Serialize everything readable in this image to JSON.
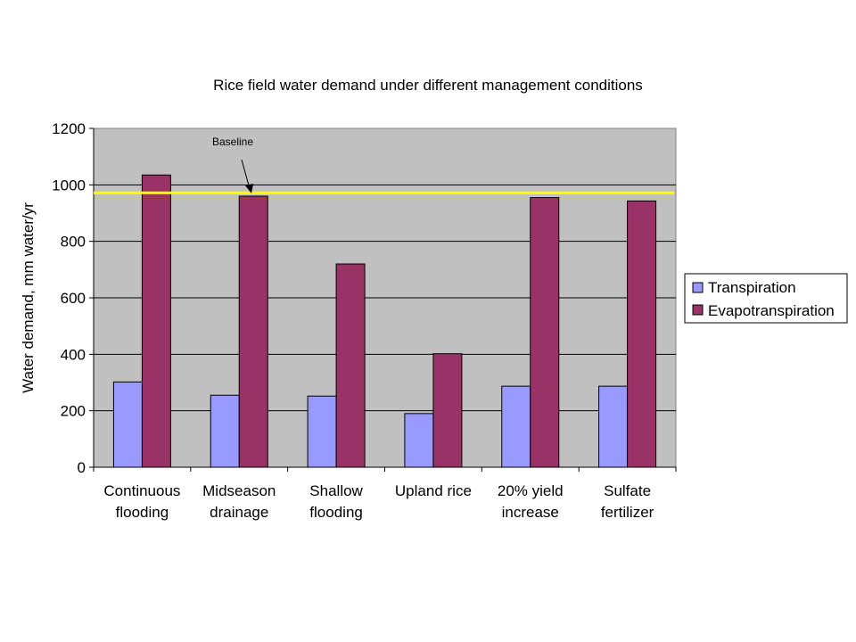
{
  "chart_data": {
    "type": "bar",
    "title": "Rice field water demand under different management conditions",
    "ylabel": "Water demand, mm water/yr",
    "xlabel": "",
    "ylim": [
      0,
      1200
    ],
    "yticks": [
      0,
      200,
      400,
      600,
      800,
      1000,
      1200
    ],
    "grid": true,
    "categories": [
      [
        "Continuous",
        "flooding"
      ],
      [
        "Midseason",
        "drainage"
      ],
      [
        "Shallow",
        "flooding"
      ],
      [
        "Upland rice"
      ],
      [
        "20% yield",
        "increase"
      ],
      [
        "Sulfate",
        "fertilizer"
      ]
    ],
    "series": [
      {
        "name": "Transpiration",
        "color": "#9999ff",
        "values": [
          302,
          255,
          252,
          190,
          287,
          287
        ]
      },
      {
        "name": "Evapotranspiration",
        "color": "#993366",
        "values": [
          1035,
          960,
          720,
          402,
          955,
          943
        ]
      }
    ],
    "baseline": {
      "label": "Baseline",
      "value": 972,
      "color": "#ffff00"
    },
    "legend_position": "right",
    "plot_background": "#c0c0c0"
  }
}
